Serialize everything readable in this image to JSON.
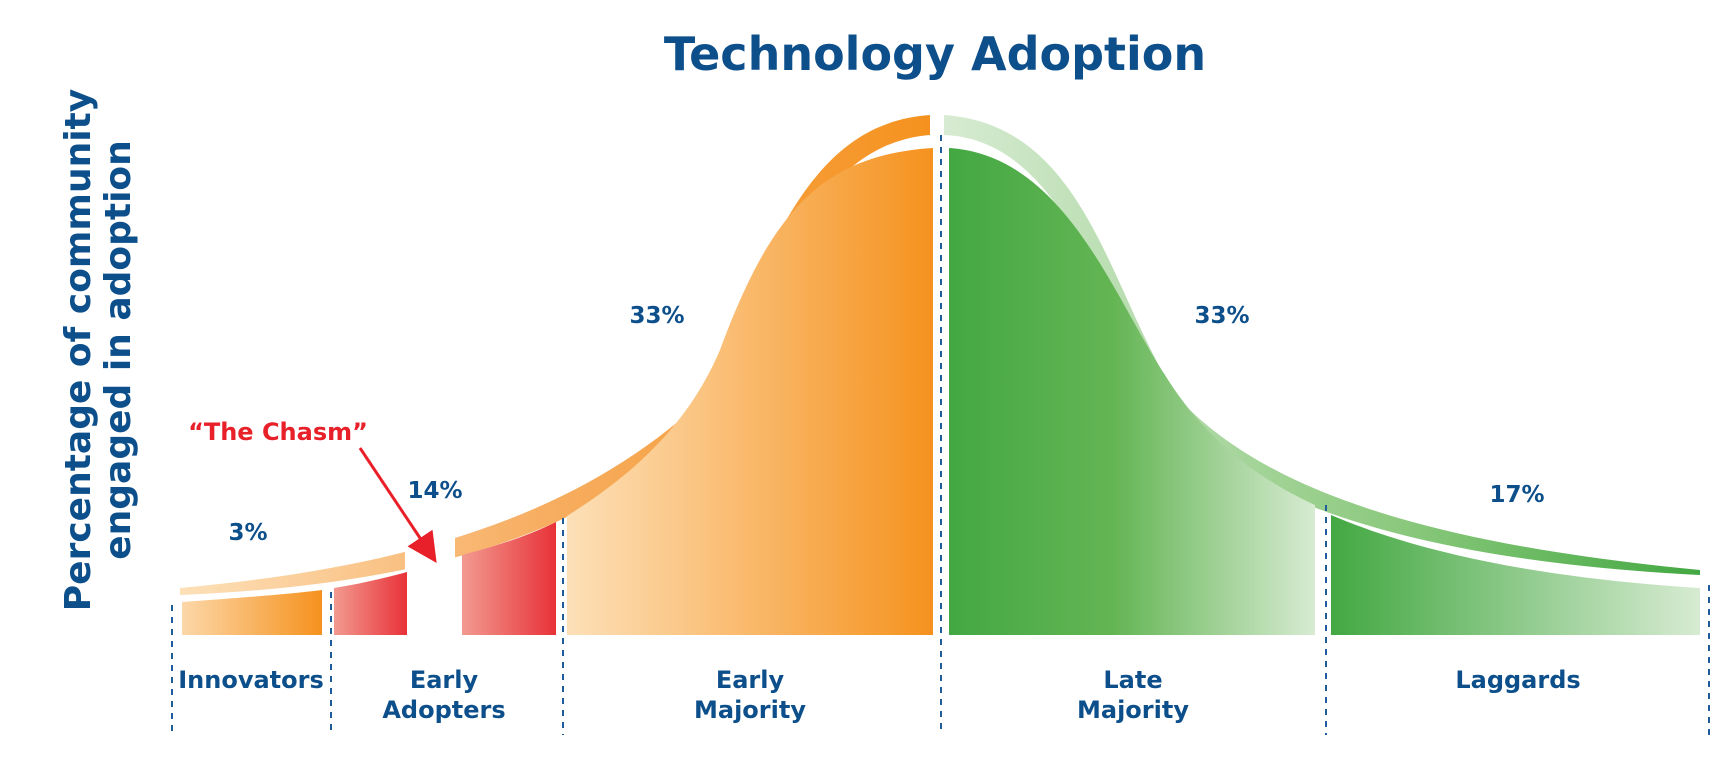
{
  "title": "Technology Adoption",
  "ylabel_lines": [
    "Percentage of community",
    "engaged in adoption"
  ],
  "chasm_label": "“The Chasm”",
  "segments": [
    {
      "name_lines": [
        "Innovators"
      ],
      "percent": "3%",
      "share": 3
    },
    {
      "name_lines": [
        "Early",
        "Adopters"
      ],
      "percent": "14%",
      "share": 14
    },
    {
      "name_lines": [
        "Early",
        "Majority"
      ],
      "percent": "33%",
      "share": 33
    },
    {
      "name_lines": [
        "Late",
        "Majority"
      ],
      "percent": "33%",
      "share": 33
    },
    {
      "name_lines": [
        "Laggards"
      ],
      "percent": "17%",
      "share": 17
    }
  ],
  "colors": {
    "title": "#0d4f8b",
    "text": "#0d4f8b",
    "chasm": "#e8202a",
    "orange": "#f5921e",
    "orange_light": "#fde0b8",
    "red": "#e83238",
    "red_light": "#f29a90",
    "green": "#43a842",
    "green_light": "#d7ebd2",
    "divider": "#1f5d9a"
  }
}
